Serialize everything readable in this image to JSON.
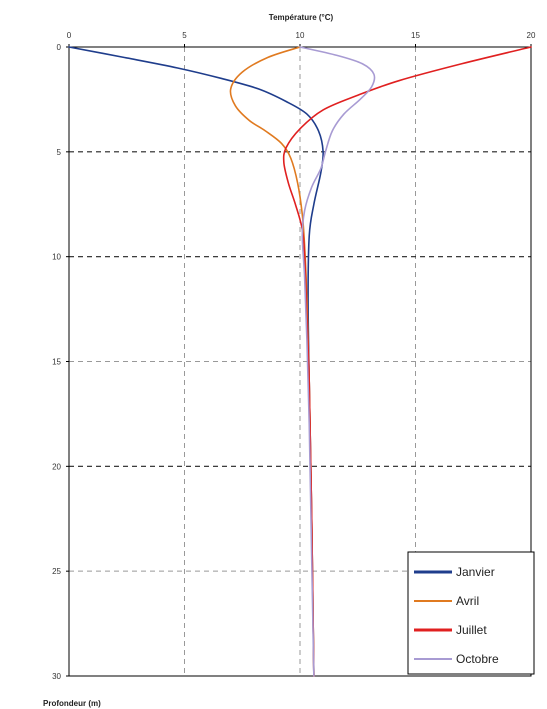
{
  "chart_data": {
    "type": "line",
    "title": "",
    "xlabel": "Température (°C)",
    "ylabel": "Profondeur (m)",
    "x_axis_position": "top",
    "y_axis_inverted": true,
    "xlim": [
      0,
      20
    ],
    "ylim": [
      0,
      30
    ],
    "xticks": [
      0,
      5,
      10,
      15,
      20
    ],
    "yticks": [
      0,
      5,
      10,
      15,
      20,
      25,
      30
    ],
    "grid": true,
    "legend_position": "bottom-right",
    "series": [
      {
        "name": "Janvier",
        "color": "#1f3d8c",
        "points": [
          [
            0,
            0
          ],
          [
            2.4,
            0.5
          ],
          [
            4.7,
            1.0
          ],
          [
            6.6,
            1.5
          ],
          [
            8.2,
            2.0
          ],
          [
            9.4,
            2.6
          ],
          [
            10.3,
            3.2
          ],
          [
            10.8,
            4.0
          ],
          [
            11.0,
            5.0
          ],
          [
            10.9,
            6.0
          ],
          [
            10.6,
            7.5
          ],
          [
            10.4,
            9.0
          ],
          [
            10.35,
            12.0
          ],
          [
            10.4,
            16.0
          ],
          [
            10.5,
            22.0
          ],
          [
            10.6,
            30.0
          ]
        ]
      },
      {
        "name": "Avril",
        "color": "#e07a20",
        "points": [
          [
            10.0,
            0
          ],
          [
            8.6,
            0.5
          ],
          [
            7.5,
            1.2
          ],
          [
            7.0,
            2.0
          ],
          [
            7.2,
            2.8
          ],
          [
            7.8,
            3.5
          ],
          [
            8.5,
            4.0
          ],
          [
            9.2,
            4.6
          ],
          [
            9.6,
            5.3
          ],
          [
            9.9,
            6.5
          ],
          [
            10.1,
            8.0
          ],
          [
            10.2,
            9.5
          ],
          [
            10.3,
            12.0
          ],
          [
            10.4,
            16.0
          ],
          [
            10.5,
            22.0
          ],
          [
            10.6,
            30.0
          ]
        ]
      },
      {
        "name": "Juillet",
        "color": "#e02020",
        "points": [
          [
            20.0,
            0
          ],
          [
            17.0,
            0.8
          ],
          [
            14.3,
            1.6
          ],
          [
            12.5,
            2.3
          ],
          [
            11.0,
            3.0
          ],
          [
            10.0,
            3.9
          ],
          [
            9.4,
            4.8
          ],
          [
            9.3,
            5.5
          ],
          [
            9.5,
            6.5
          ],
          [
            9.8,
            7.5
          ],
          [
            10.1,
            8.7
          ],
          [
            10.2,
            10.0
          ],
          [
            10.3,
            13.0
          ],
          [
            10.4,
            16.0
          ],
          [
            10.5,
            22.0
          ],
          [
            10.6,
            30.0
          ]
        ]
      },
      {
        "name": "Octobre",
        "color": "#a89bd3",
        "points": [
          [
            10.0,
            0
          ],
          [
            11.6,
            0.4
          ],
          [
            12.7,
            0.8
          ],
          [
            13.2,
            1.3
          ],
          [
            13.1,
            1.9
          ],
          [
            12.6,
            2.5
          ],
          [
            11.9,
            3.2
          ],
          [
            11.4,
            4.0
          ],
          [
            11.1,
            5.0
          ],
          [
            10.9,
            5.8
          ],
          [
            10.5,
            6.7
          ],
          [
            10.2,
            7.8
          ],
          [
            10.1,
            9.0
          ],
          [
            10.2,
            11.0
          ],
          [
            10.3,
            14.0
          ],
          [
            10.4,
            18.0
          ],
          [
            10.5,
            24.0
          ],
          [
            10.6,
            30.0
          ]
        ]
      }
    ]
  }
}
